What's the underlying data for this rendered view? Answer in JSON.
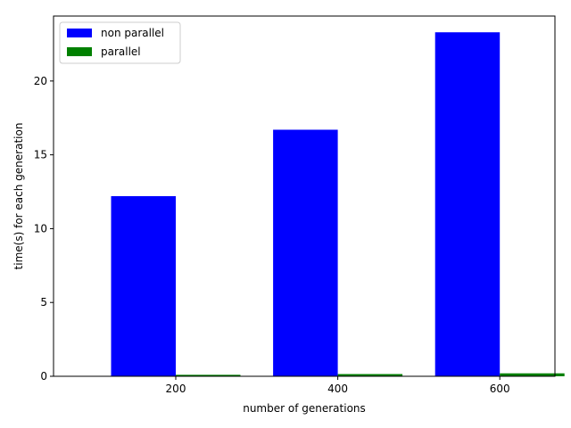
{
  "chart_data": {
    "type": "bar",
    "categories": [
      "200",
      "400",
      "600"
    ],
    "series": [
      {
        "name": "non parallel",
        "values": [
          12.2,
          16.7,
          23.3
        ],
        "color": "#0000ff"
      },
      {
        "name": "parallel",
        "values": [
          0.1,
          0.15,
          0.2
        ],
        "color": "#008000"
      }
    ],
    "xlabel": "number of generations",
    "ylabel": "time(s) for each generation",
    "ylim": [
      0,
      24.4
    ],
    "yticks": [
      0,
      5,
      10,
      15,
      20
    ],
    "grid": false,
    "legend_position": "top-left"
  }
}
